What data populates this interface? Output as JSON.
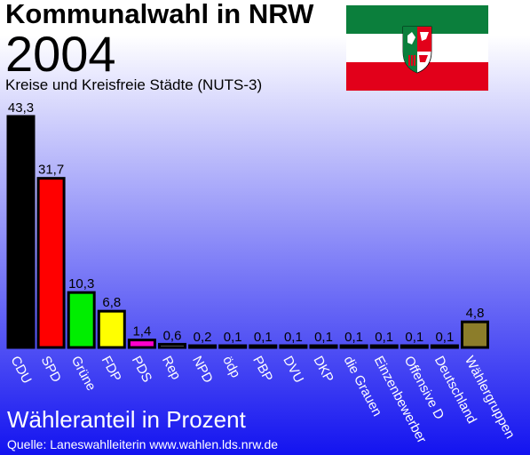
{
  "header": {
    "title": "Kommunalwahl in NRW",
    "year": "2004",
    "subtitle": "Kreise und Kreisfreie Städte (NUTS-3)"
  },
  "flag": {
    "name": "nrw-flag",
    "colors": [
      "#0b7f3c",
      "#ffffff",
      "#e2001a"
    ]
  },
  "chart_data": {
    "type": "bar",
    "title": "Wähleranteil in Prozent",
    "ylabel": "",
    "xlabel": "",
    "ylim": [
      0,
      45
    ],
    "grid": false,
    "legend": "none",
    "categories": [
      "CDU",
      "SPD",
      "Grüne",
      "FDP",
      "PDS",
      "Rep",
      "NPD",
      "ödp",
      "PBP",
      "DVU",
      "DKP",
      "die Grauen",
      "Einzenbewerber",
      "Offensive D",
      "Deutschland",
      "Wählergruppen"
    ],
    "values": [
      43.3,
      31.7,
      10.3,
      6.8,
      1.4,
      0.6,
      0.2,
      0.1,
      0.1,
      0.1,
      0.1,
      0.1,
      0.1,
      0.1,
      0.1,
      4.8
    ],
    "value_labels": [
      "43,3",
      "31,7",
      "10,3",
      "6,8",
      "1,4",
      "0,6",
      "0,2",
      "0,1",
      "0,1",
      "0,1",
      "0,1",
      "0,1",
      "0,1",
      "0,1",
      "0,1",
      "4,8"
    ],
    "colors": [
      "#000000",
      "#ff0000",
      "#00ee00",
      "#ffff00",
      "#ff00cc",
      "#8a8a8a",
      "#663300",
      "#ff8800",
      "#0000cc",
      "#0055aa",
      "#cc0000",
      "#888888",
      "#aaaaaa",
      "#444488",
      "#000000",
      "#8c7d2a"
    ]
  },
  "footer": {
    "source": "Quelle: Laneswahlleiterin www.wahlen.lds.nrw.de"
  }
}
